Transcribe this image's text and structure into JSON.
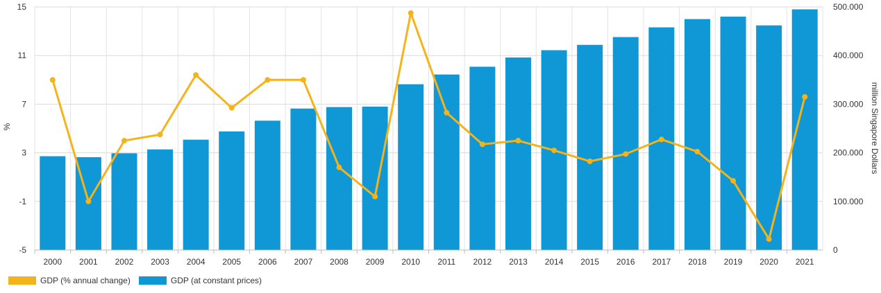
{
  "chart_data": {
    "type": "bar+line",
    "categories": [
      "2000",
      "2001",
      "2002",
      "2003",
      "2004",
      "2005",
      "2006",
      "2007",
      "2008",
      "2009",
      "2010",
      "2011",
      "2012",
      "2013",
      "2014",
      "2015",
      "2016",
      "2017",
      "2018",
      "2019",
      "2020",
      "2021"
    ],
    "series": [
      {
        "name": "GDP (% annual change)",
        "type": "line",
        "axis": "left",
        "color": "#f5b31b",
        "values": [
          9.0,
          -1.0,
          4.0,
          4.5,
          9.4,
          6.7,
          9.0,
          9.0,
          1.8,
          -0.6,
          14.5,
          6.3,
          3.7,
          4.0,
          3.2,
          2.3,
          2.9,
          4.1,
          3.1,
          0.7,
          -4.1,
          7.6
        ]
      },
      {
        "name": "GDP (at constant prices)",
        "type": "bar",
        "axis": "right",
        "color": "#1097d6",
        "values": [
          193000,
          191000,
          199000,
          207000,
          227000,
          244000,
          266000,
          291000,
          294000,
          295000,
          341000,
          361000,
          377000,
          396000,
          411000,
          422000,
          438000,
          458000,
          475000,
          480000,
          462000,
          495000
        ]
      }
    ],
    "y_left": {
      "label": "%",
      "range": [
        -5,
        15
      ],
      "ticks": [
        "15",
        "11",
        "7",
        "3",
        "-1",
        "-5"
      ]
    },
    "y_right": {
      "label": "million Singapore Dollars",
      "range": [
        0,
        500000
      ],
      "ticks": [
        "500.000",
        "400.000",
        "300.000",
        "200.000",
        "100.000",
        "0"
      ]
    },
    "grid": true,
    "legend_position": "bottom-left",
    "legend": [
      {
        "label": "GDP (% annual change)",
        "color": "#f5b31b"
      },
      {
        "label": "GDP (at constant prices)",
        "color": "#1097d6"
      }
    ]
  }
}
